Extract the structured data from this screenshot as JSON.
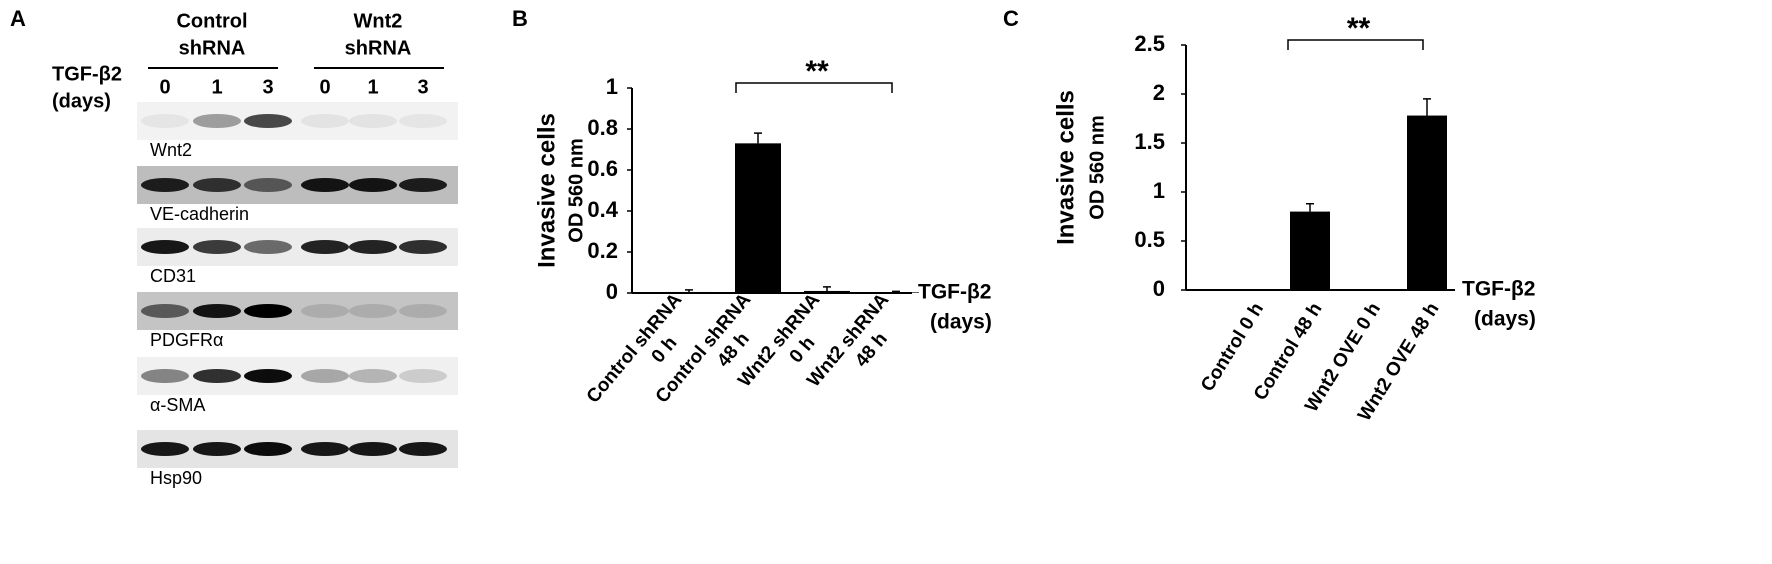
{
  "panel_labels": [
    "A",
    "B",
    "C"
  ],
  "blot": {
    "treatment_label": [
      "TGF-β2",
      "(days)"
    ],
    "groups": [
      {
        "lines": [
          "Control",
          "shRNA"
        ]
      },
      {
        "lines": [
          "Wnt2",
          "shRNA"
        ]
      }
    ],
    "lanes": [
      "0",
      "1",
      "3",
      "0",
      "1",
      "3"
    ],
    "rows": [
      {
        "label": "Wnt2",
        "background": "#f2f2f2",
        "bands": [
          0.05,
          0.35,
          0.7,
          0.06,
          0.06,
          0.05
        ]
      },
      {
        "label": "VE-cadherin",
        "background": "#bdbdbd",
        "bands": [
          0.85,
          0.75,
          0.55,
          0.9,
          0.9,
          0.85
        ]
      },
      {
        "label": "CD31",
        "background": "#ececec",
        "bands": [
          0.9,
          0.75,
          0.55,
          0.85,
          0.85,
          0.8
        ]
      },
      {
        "label": "PDGFRα",
        "background": "#c4c4c4",
        "bands": [
          0.55,
          0.9,
          1.0,
          0.12,
          0.12,
          0.12
        ]
      },
      {
        "label": "α-SMA",
        "background": "#f0f0f0",
        "bands": [
          0.45,
          0.8,
          0.95,
          0.3,
          0.25,
          0.15
        ]
      },
      {
        "label": "Hsp90",
        "background": "#e4e4e4",
        "bands": [
          0.9,
          0.9,
          0.95,
          0.9,
          0.9,
          0.9
        ]
      }
    ]
  },
  "chart_data": [
    {
      "type": "bar",
      "y_label": [
        "Invasive cells",
        "OD 560 nm"
      ],
      "x_label": [
        "TGF-β2",
        "(days)"
      ],
      "categories": [
        [
          "Control shRNA",
          "0 h"
        ],
        [
          "Control shRNA",
          "48 h"
        ],
        [
          "Wnt2 shRNA",
          "0 h"
        ],
        [
          "Wnt2 shRNA",
          "48 h"
        ]
      ],
      "values": [
        0.005,
        0.73,
        0.01,
        0.003
      ],
      "errors": [
        0.01,
        0.05,
        0.02,
        0.005
      ],
      "color": "#000000",
      "ylim": [
        0,
        1
      ],
      "yticks": [
        0,
        0.2,
        0.4,
        0.6,
        0.8,
        1
      ],
      "significance": {
        "label": "**",
        "between": [
          1,
          3
        ]
      }
    },
    {
      "type": "bar",
      "y_label": [
        "Invasive cells",
        "OD 560 nm"
      ],
      "x_label": [
        "TGF-β2",
        "(days)"
      ],
      "categories": [
        [
          "Control 0 h"
        ],
        [
          "Control 48 h"
        ],
        [
          "Wnt2 OVE 0 h"
        ],
        [
          "Wnt2 OVE 48 h"
        ]
      ],
      "values": [
        0,
        0.8,
        0,
        1.78
      ],
      "errors": [
        0,
        0.08,
        0,
        0.17
      ],
      "color": "#000000",
      "ylim": [
        0,
        2.5
      ],
      "yticks": [
        0,
        0.5,
        1,
        1.5,
        2,
        2.5
      ],
      "significance": {
        "label": "**",
        "between": [
          1,
          3
        ]
      }
    }
  ]
}
